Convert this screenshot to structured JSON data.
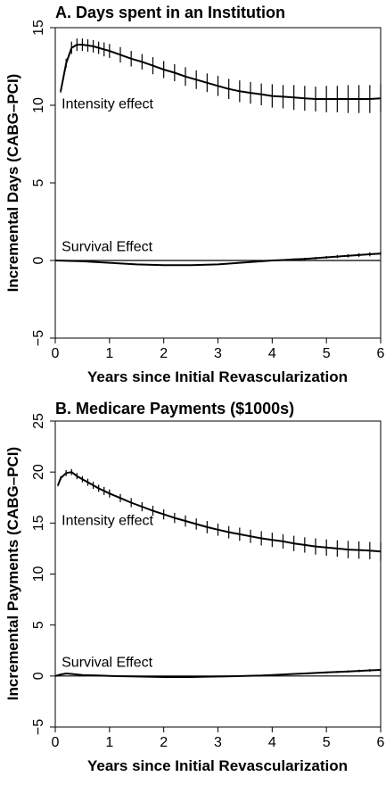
{
  "chart_data": [
    {
      "type": "line",
      "title": "A. Days spent in an Institution",
      "xlabel": "Years since Initial Revascularization",
      "ylabel": "Incremental Days (CABG–PCI)",
      "xlim": [
        0,
        6
      ],
      "ylim": [
        -5,
        15
      ],
      "xticks": [
        "0",
        "1",
        "2",
        "3",
        "4",
        "5",
        "6"
      ],
      "yticks": [
        "−5",
        "0",
        "5",
        "10",
        "15"
      ],
      "annotations": [
        {
          "text": "Intensity effect",
          "x": 0.15,
          "y": 9.8
        },
        {
          "text": "Survival Effect",
          "x": 0.15,
          "y": 0.6
        }
      ],
      "series": [
        {
          "x": [
            0.1,
            0.2,
            0.3,
            0.4,
            0.5,
            0.6,
            0.7,
            0.8,
            0.9,
            1.0,
            1.2,
            1.4,
            1.6,
            1.8,
            2.0,
            2.2,
            2.4,
            2.6,
            2.8,
            3.0,
            3.2,
            3.4,
            3.6,
            3.8,
            4.0,
            4.2,
            4.4,
            4.6,
            4.8,
            5.0,
            5.2,
            5.4,
            5.6,
            5.8,
            6.0
          ],
          "values": [
            10.9,
            12.7,
            13.7,
            13.9,
            13.9,
            13.85,
            13.8,
            13.7,
            13.6,
            13.5,
            13.25,
            13.0,
            12.8,
            12.55,
            12.3,
            12.1,
            11.85,
            11.65,
            11.45,
            11.25,
            11.05,
            10.9,
            10.8,
            10.7,
            10.6,
            10.55,
            10.5,
            10.45,
            10.4,
            10.4,
            10.4,
            10.4,
            10.4,
            10.4,
            10.45
          ],
          "errors": [
            0.1,
            0.3,
            0.4,
            0.4,
            0.4,
            0.4,
            0.4,
            0.4,
            0.45,
            0.45,
            0.5,
            0.5,
            0.5,
            0.55,
            0.55,
            0.55,
            0.6,
            0.6,
            0.6,
            0.65,
            0.65,
            0.7,
            0.7,
            0.7,
            0.75,
            0.75,
            0.8,
            0.8,
            0.8,
            0.85,
            0.85,
            0.9,
            0.9,
            0.9,
            0.9
          ]
        },
        {
          "x": [
            0,
            0.5,
            1.0,
            1.5,
            2.0,
            2.5,
            3.0,
            3.2,
            3.4,
            3.6,
            3.8,
            4.0,
            4.2,
            4.4,
            4.6,
            4.8,
            5.0,
            5.2,
            5.4,
            5.6,
            5.8,
            6.0
          ],
          "values": [
            0,
            -0.05,
            -0.15,
            -0.25,
            -0.3,
            -0.3,
            -0.25,
            -0.2,
            -0.15,
            -0.1,
            -0.05,
            0,
            0.03,
            0.07,
            0.1,
            0.15,
            0.2,
            0.25,
            0.3,
            0.35,
            0.4,
            0.45
          ],
          "errors": [
            0,
            0,
            0,
            0,
            0,
            0,
            0,
            0.02,
            0.02,
            0.03,
            0.03,
            0.04,
            0.05,
            0.06,
            0.07,
            0.08,
            0.09,
            0.1,
            0.11,
            0.12,
            0.13,
            0.14
          ]
        },
        {
          "x": [
            0,
            6
          ],
          "values": [
            0,
            0
          ]
        }
      ]
    },
    {
      "type": "line",
      "title": "B. Medicare Payments ($1000s)",
      "xlabel": "Years since Initial Revascularization",
      "ylabel": "Incremental Payments (CABG–PCI)",
      "xlim": [
        0,
        6
      ],
      "ylim": [
        -5,
        25
      ],
      "xticks": [
        "0",
        "1",
        "2",
        "3",
        "4",
        "5",
        "6"
      ],
      "yticks": [
        "−5",
        "0",
        "5",
        "10",
        "15",
        "20",
        "25"
      ],
      "annotations": [
        {
          "text": "Intensity effect",
          "x": 0.15,
          "y": 14.8
        },
        {
          "text": "Survival Effect",
          "x": 0.15,
          "y": 0.9
        }
      ],
      "series": [
        {
          "x": [
            0.05,
            0.1,
            0.2,
            0.3,
            0.4,
            0.5,
            0.6,
            0.7,
            0.8,
            0.9,
            1.0,
            1.2,
            1.4,
            1.6,
            1.8,
            2.0,
            2.2,
            2.4,
            2.6,
            2.8,
            3.0,
            3.2,
            3.4,
            3.6,
            3.8,
            4.0,
            4.2,
            4.4,
            4.6,
            4.8,
            5.0,
            5.2,
            5.4,
            5.6,
            5.8,
            6.0
          ],
          "values": [
            18.7,
            19.4,
            19.9,
            20.0,
            19.6,
            19.3,
            19.0,
            18.7,
            18.4,
            18.15,
            17.9,
            17.45,
            17.0,
            16.6,
            16.2,
            15.85,
            15.5,
            15.2,
            14.9,
            14.6,
            14.35,
            14.1,
            13.9,
            13.7,
            13.5,
            13.35,
            13.2,
            13.0,
            12.85,
            12.7,
            12.6,
            12.5,
            12.4,
            12.35,
            12.3,
            12.2
          ],
          "errors": [
            0.1,
            0.2,
            0.3,
            0.3,
            0.3,
            0.3,
            0.35,
            0.35,
            0.35,
            0.4,
            0.4,
            0.4,
            0.45,
            0.45,
            0.5,
            0.5,
            0.5,
            0.55,
            0.55,
            0.6,
            0.6,
            0.6,
            0.65,
            0.65,
            0.7,
            0.7,
            0.7,
            0.75,
            0.75,
            0.8,
            0.8,
            0.8,
            0.85,
            0.85,
            0.85,
            0.9
          ]
        },
        {
          "x": [
            0,
            0.1,
            0.2,
            0.3,
            0.5,
            0.8,
            1.0,
            1.5,
            2.0,
            2.5,
            3.0,
            3.5,
            3.8,
            4.0,
            4.2,
            4.4,
            4.6,
            4.8,
            5.0,
            5.2,
            5.4,
            5.6,
            5.8,
            6.0
          ],
          "values": [
            0,
            0.15,
            0.25,
            0.2,
            0.1,
            0.05,
            0,
            -0.05,
            -0.1,
            -0.1,
            -0.05,
            0,
            0.05,
            0.1,
            0.15,
            0.2,
            0.25,
            0.3,
            0.35,
            0.4,
            0.45,
            0.5,
            0.55,
            0.6
          ],
          "errors": [
            0,
            0,
            0,
            0,
            0,
            0,
            0,
            0,
            0,
            0,
            0,
            0.02,
            0.03,
            0.04,
            0.05,
            0.06,
            0.07,
            0.08,
            0.09,
            0.1,
            0.11,
            0.12,
            0.13,
            0.14
          ]
        },
        {
          "x": [
            0,
            6
          ],
          "values": [
            0,
            0
          ]
        }
      ]
    }
  ]
}
